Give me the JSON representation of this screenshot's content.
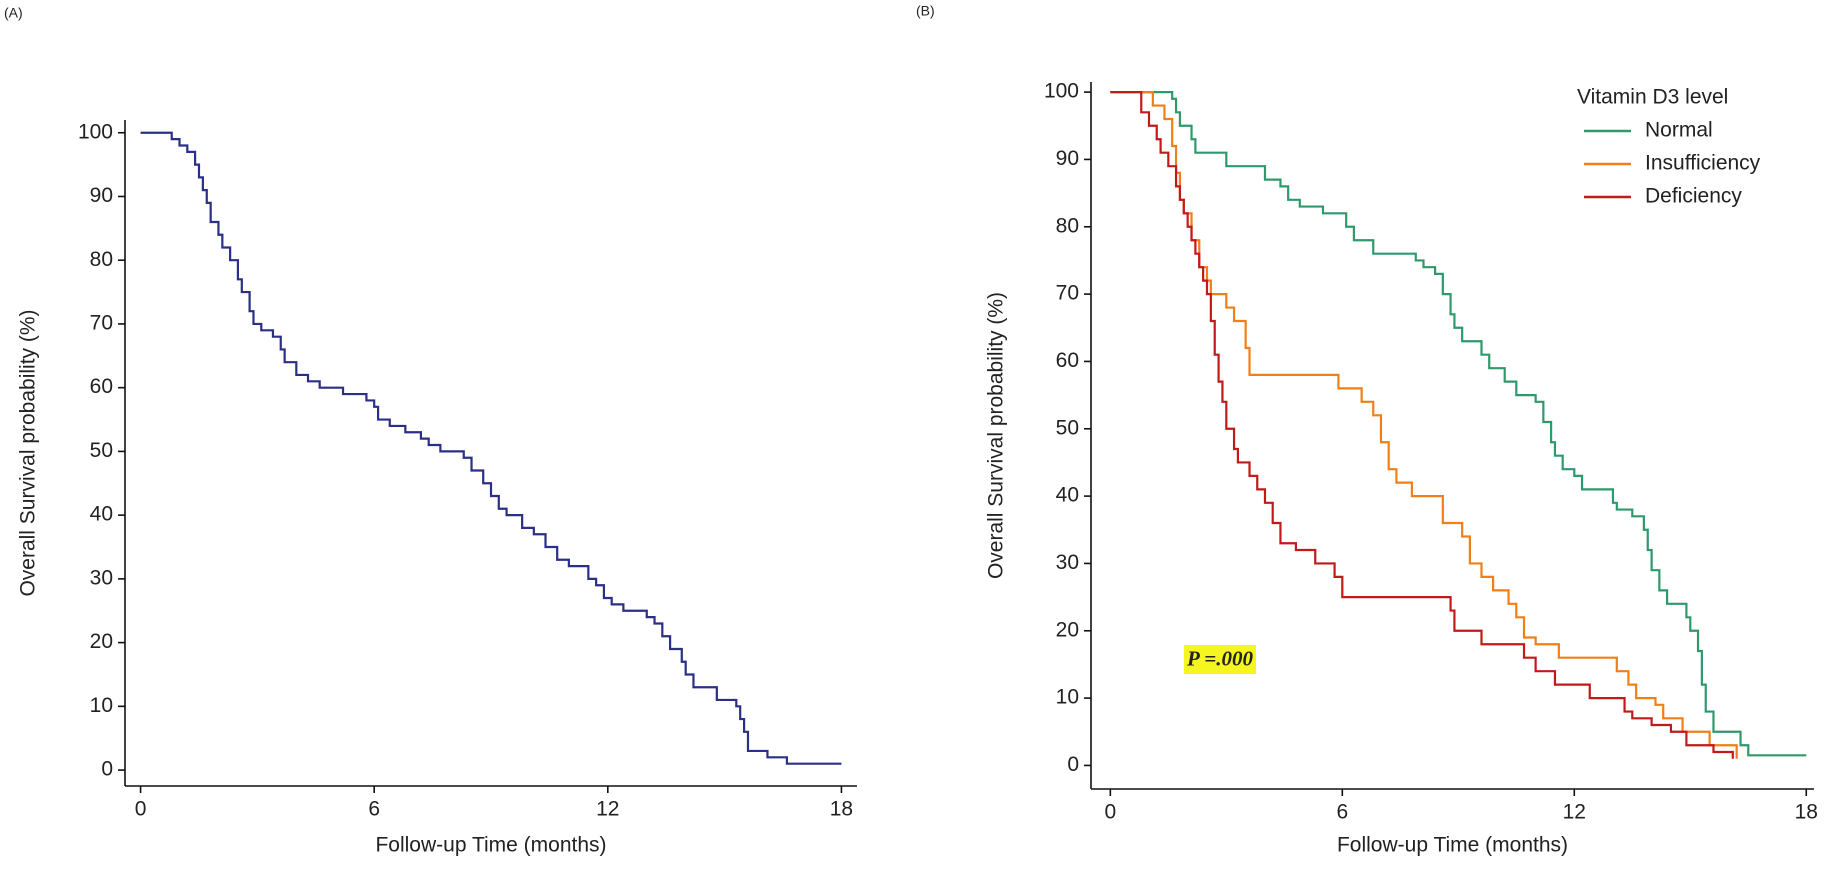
{
  "chart_data": [
    {
      "type": "step",
      "panel_label": "(A)",
      "x_label": "Follow-up Time (months)",
      "y_label": "Overall Survival probability (%)",
      "xlim": [
        -0.4,
        18.4
      ],
      "ylim": [
        -2.5,
        102
      ],
      "xticks": [
        0,
        6,
        12,
        18
      ],
      "yticks": [
        0,
        10,
        20,
        30,
        40,
        50,
        60,
        70,
        80,
        90,
        100
      ],
      "series": [
        {
          "color": "#2b2f86",
          "x": [
            0,
            0.7,
            0.8,
            1.0,
            1.2,
            1.4,
            1.5,
            1.6,
            1.7,
            1.8,
            2.0,
            2.1,
            2.3,
            2.5,
            2.6,
            2.8,
            2.9,
            3.1,
            3.4,
            3.6,
            3.7,
            4.0,
            4.3,
            4.6,
            5.2,
            5.8,
            6.0,
            6.1,
            6.4,
            6.8,
            7.2,
            7.4,
            7.7,
            8.3,
            8.5,
            8.8,
            9.0,
            9.2,
            9.4,
            9.8,
            10.1,
            10.4,
            10.7,
            11.0,
            11.5,
            11.7,
            11.9,
            12.1,
            12.4,
            13.0,
            13.2,
            13.4,
            13.6,
            13.9,
            14.0,
            14.2,
            14.8,
            15.3,
            15.4,
            15.5,
            15.6,
            16.1,
            16.6,
            18.0
          ],
          "values": [
            100,
            100,
            99,
            98,
            97,
            95,
            93,
            91,
            89,
            86,
            84,
            82,
            80,
            77,
            75,
            72,
            70,
            69,
            68,
            66,
            64,
            62,
            61,
            60,
            59,
            58,
            57,
            55,
            54,
            53,
            52,
            51,
            50,
            49,
            47,
            45,
            43,
            41,
            40,
            38,
            37,
            35,
            33,
            32,
            30,
            29,
            27,
            26,
            25,
            24,
            23,
            21,
            19,
            17,
            15,
            13,
            11,
            10,
            8,
            6,
            3,
            2,
            1,
            1
          ]
        }
      ]
    },
    {
      "type": "step",
      "panel_label": "(B)",
      "x_label": "Follow-up Time (months)",
      "y_label": "Overall Survival probability (%)",
      "xlim": [
        -0.5,
        18.2
      ],
      "ylim": [
        -3.5,
        101.5
      ],
      "xticks": [
        0,
        6,
        12,
        18
      ],
      "yticks": [
        0,
        10,
        20,
        30,
        40,
        50,
        60,
        70,
        80,
        90,
        100
      ],
      "legend_title": "Vitamin D3 level",
      "annotation": "P =.000",
      "series": [
        {
          "name": "Normal",
          "color": "#2e9a6c",
          "x": [
            0,
            1.5,
            1.6,
            1.7,
            1.8,
            2.1,
            2.2,
            3.0,
            4.0,
            4.4,
            4.6,
            4.9,
            5.5,
            6.1,
            6.3,
            6.8,
            7.9,
            8.1,
            8.4,
            8.6,
            8.8,
            8.9,
            9.1,
            9.6,
            9.8,
            10.2,
            10.5,
            11.0,
            11.2,
            11.4,
            11.5,
            11.7,
            12.0,
            12.2,
            13.0,
            13.1,
            13.5,
            13.8,
            13.9,
            14.0,
            14.2,
            14.4,
            14.9,
            15.0,
            15.2,
            15.3,
            15.4,
            15.6,
            16.3,
            16.5,
            18.0
          ],
          "values": [
            100,
            100,
            99,
            97,
            95,
            93,
            91,
            89,
            87,
            86,
            84,
            83,
            82,
            80,
            78,
            76,
            75,
            74,
            73,
            70,
            67,
            65,
            63,
            61,
            59,
            57,
            55,
            54,
            51,
            48,
            46,
            44,
            43,
            41,
            39,
            38,
            37,
            35,
            32,
            29,
            26,
            24,
            22,
            20,
            17,
            12,
            8,
            5,
            3,
            1.5,
            1.5
          ]
        },
        {
          "name": "Insufficiency",
          "color": "#f07f17",
          "x": [
            0,
            1.0,
            1.1,
            1.4,
            1.6,
            1.7,
            1.8,
            1.9,
            2.1,
            2.3,
            2.5,
            2.6,
            3.0,
            3.2,
            3.5,
            3.6,
            5.9,
            6.5,
            6.8,
            7.0,
            7.2,
            7.4,
            7.8,
            8.6,
            9.1,
            9.3,
            9.6,
            9.9,
            10.3,
            10.5,
            10.7,
            11.0,
            11.6,
            13.1,
            13.4,
            13.6,
            14.1,
            14.3,
            14.8,
            15.5,
            16.2
          ],
          "values": [
            100,
            100,
            98,
            96,
            92,
            88,
            84,
            82,
            78,
            74,
            72,
            70,
            68,
            66,
            62,
            58,
            56,
            54,
            52,
            48,
            44,
            42,
            40,
            36,
            34,
            30,
            28,
            26,
            24,
            22,
            19,
            18,
            16,
            14,
            12,
            10,
            9,
            7,
            5,
            3,
            1
          ]
        },
        {
          "name": "Deficiency",
          "color": "#c01a1a",
          "x": [
            0,
            0.7,
            0.8,
            1.0,
            1.2,
            1.3,
            1.5,
            1.7,
            1.8,
            1.9,
            2.0,
            2.1,
            2.2,
            2.3,
            2.4,
            2.5,
            2.6,
            2.7,
            2.8,
            2.9,
            3.0,
            3.2,
            3.3,
            3.6,
            3.8,
            4.0,
            4.2,
            4.4,
            4.8,
            5.3,
            5.8,
            6.0,
            8.8,
            8.9,
            9.6,
            10.7,
            11.0,
            11.5,
            12.4,
            13.3,
            13.5,
            14.0,
            14.5,
            14.9,
            15.6,
            16.1
          ],
          "values": [
            100,
            100,
            97,
            95,
            93,
            91,
            89,
            86,
            84,
            82,
            80,
            78,
            76,
            74,
            72,
            70,
            66,
            61,
            57,
            54,
            50,
            47,
            45,
            43,
            41,
            39,
            36,
            33,
            32,
            30,
            28,
            25,
            23,
            20,
            18,
            16,
            14,
            12,
            10,
            8,
            7,
            6,
            5,
            3,
            2,
            1
          ]
        }
      ]
    }
  ]
}
